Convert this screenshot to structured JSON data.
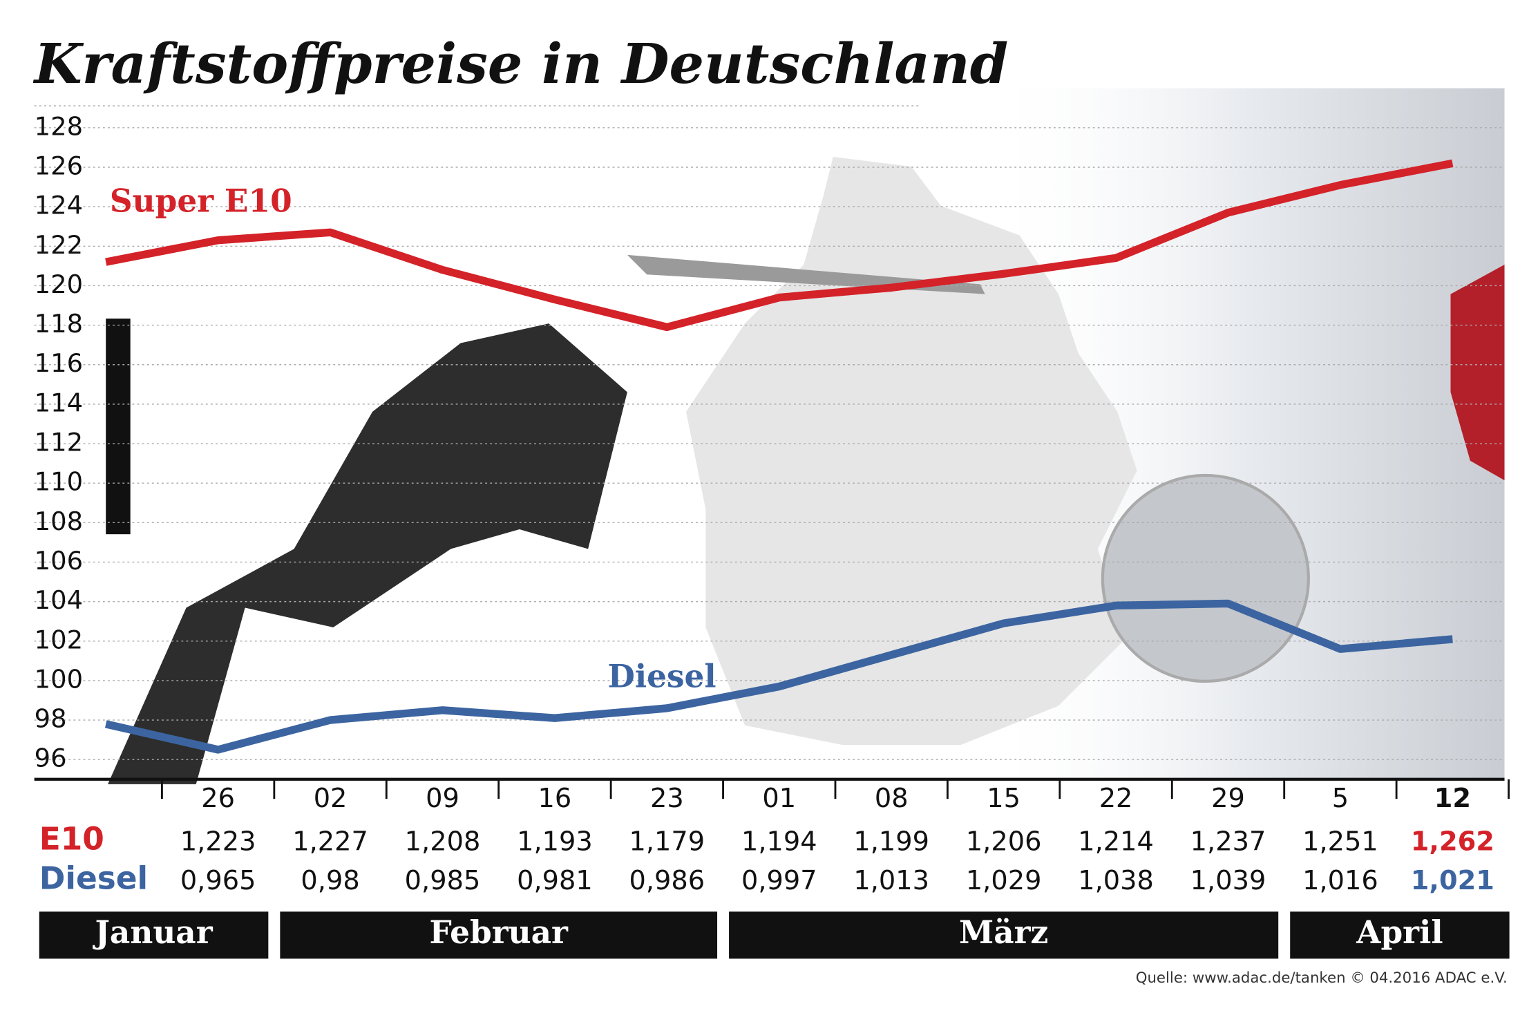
{
  "chart_data": {
    "type": "line",
    "title": "Kraftstoffpreise in Deutschland",
    "categories": [
      null,
      "26",
      "02",
      "09",
      "16",
      "23",
      "01",
      "08",
      "15",
      "22",
      "29",
      "5",
      "12"
    ],
    "series": [
      {
        "name": "Super E10",
        "color": "#d42229",
        "values": [
          121.2,
          122.3,
          122.7,
          120.8,
          119.3,
          117.9,
          119.4,
          119.9,
          120.6,
          121.4,
          123.7,
          125.1,
          126.2
        ],
        "value_labels": [
          null,
          "1,223",
          "1,227",
          "1,208",
          "1,193",
          "1,179",
          "1,194",
          "1,199",
          "1,206",
          "1,214",
          "1,237",
          "1,251",
          "1,262"
        ]
      },
      {
        "name": "Diesel",
        "color": "#3c64a0",
        "values": [
          97.8,
          96.5,
          98,
          98.5,
          98.1,
          98.6,
          99.7,
          101.3,
          102.9,
          103.8,
          103.9,
          101.6,
          102.1
        ],
        "value_labels": [
          null,
          "0,965",
          "0,98",
          "0,985",
          "0,981",
          "0,986",
          "0,997",
          "1,013",
          "1,029",
          "1,038",
          "1,039",
          "1,016",
          "1,021"
        ]
      }
    ],
    "row_labels": [
      "E10",
      "Diesel"
    ],
    "months": [
      "Januar",
      "Februar",
      "März",
      "April"
    ],
    "source": "Quelle: www.adac.de/tanken  © 04.2016  ADAC e.V.",
    "ylim": [
      95,
      130
    ],
    "yticks": [
      96,
      98,
      100,
      102,
      104,
      106,
      108,
      110,
      112,
      114,
      116,
      118,
      120,
      122,
      124,
      126,
      128
    ],
    "grid": true
  }
}
